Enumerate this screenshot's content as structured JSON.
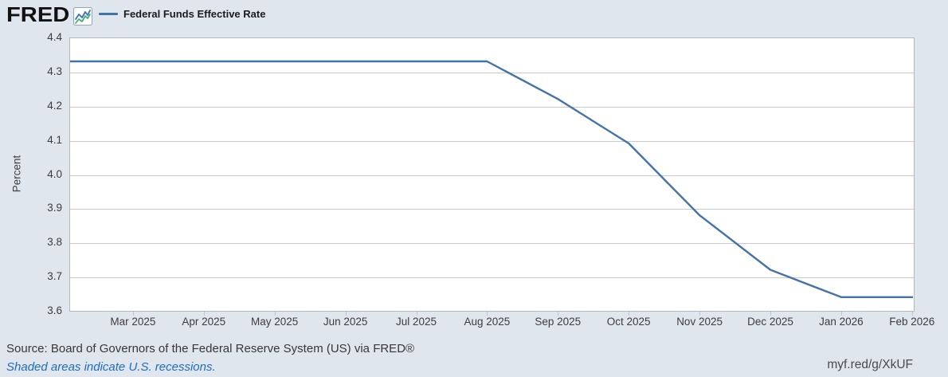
{
  "header": {
    "logo_text": "FRED",
    "logo_registered": "®",
    "logo_icon": "fred-sparkline-icon",
    "legend": {
      "series_label": "Federal Funds Effective Rate",
      "line_color": "#4572a7"
    }
  },
  "chart_data": {
    "type": "line",
    "title": "Federal Funds Effective Rate",
    "xlabel": "",
    "ylabel": "Percent",
    "ylim": [
      3.6,
      4.4
    ],
    "y_ticks": [
      "4.4",
      "4.3",
      "4.2",
      "4.1",
      "4.0",
      "3.9",
      "3.8",
      "3.7",
      "3.6"
    ],
    "x_tick_labels": [
      "Mar 2025",
      "Apr 2025",
      "May 2025",
      "Jun 2025",
      "Jul 2025",
      "Aug 2025",
      "Sep 2025",
      "Oct 2025",
      "Nov 2025",
      "Dec 2025",
      "Jan 2026",
      "Feb 2026"
    ],
    "x_range": [
      "Feb 2025",
      "Feb 2026"
    ],
    "grid": "horizontal-only",
    "legend_position": "top-left",
    "plot_background": "#ffffff",
    "outer_background": "#e0e6ee",
    "series": [
      {
        "name": "Federal Funds Effective Rate",
        "color": "#4572a7",
        "x": [
          "Feb 2025",
          "Mar 2025",
          "Apr 2025",
          "May 2025",
          "Jun 2025",
          "Jul 2025",
          "Aug 2025",
          "Sep 2025",
          "Oct 2025",
          "Nov 2025",
          "Dec 2025",
          "Jan 2026",
          "Feb 2026"
        ],
        "values": [
          4.33,
          4.33,
          4.33,
          4.33,
          4.33,
          4.33,
          4.33,
          4.22,
          4.09,
          3.88,
          3.72,
          3.64,
          3.64
        ],
        "units": "Percent"
      }
    ]
  },
  "footer": {
    "source_text": "Source: Board of Governors of the Federal Reserve System (US) via FRED®",
    "recession_note": "Shaded areas indicate U.S. recessions.",
    "short_url": "myf.red/g/XkUF"
  },
  "colors": {
    "accent_line": "#4572a7",
    "link_blue": "#1f6dbf",
    "background": "#e0e6ee",
    "gridline": "#cacaca",
    "axis_text": "#3d3d3d"
  }
}
